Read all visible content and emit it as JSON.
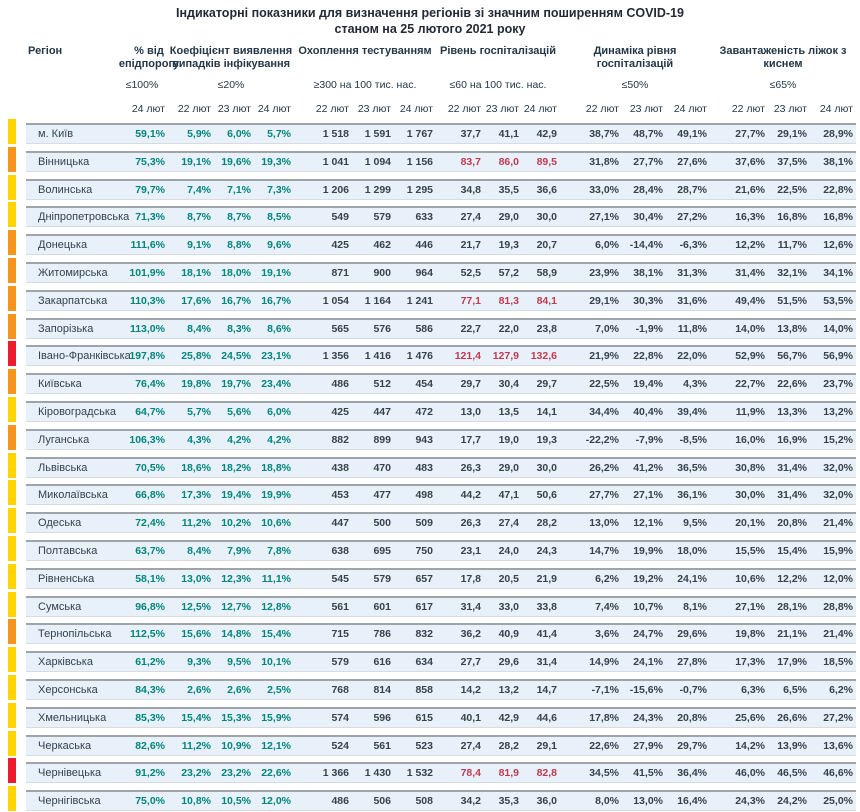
{
  "title": {
    "line1": "Індикаторні показники для визначення регіонів зі значним поширенням COVID-19",
    "line2": "станом на 25 лютого 2021 року"
  },
  "columns": {
    "region_label": "Регіон",
    "groups": [
      {
        "id": "epid",
        "title": "% від епідпорогу",
        "threshold": "≤100%",
        "dates": [
          "24 лют"
        ]
      },
      {
        "id": "coef",
        "title": "Коефіцієнт виявлення випадків інфікування",
        "threshold": "≤20%",
        "dates": [
          "22 лют",
          "23 лют",
          "24 лют"
        ]
      },
      {
        "id": "test",
        "title": "Охоплення тестуванням",
        "threshold": "≥300 на 100 тис. нас.",
        "dates": [
          "22 лют",
          "23 лют",
          "24 лют"
        ]
      },
      {
        "id": "hosp",
        "title": "Рівень госпіталізацій",
        "threshold": "≤60 на 100 тис. нас.",
        "dates": [
          "22 лют",
          "23 лют",
          "24 лют"
        ]
      },
      {
        "id": "dyn",
        "title": "Динаміка рівня госпіталізацій",
        "threshold": "≤50%",
        "dates": [
          "22 лют",
          "23 лют",
          "24 лют"
        ]
      },
      {
        "id": "oxy",
        "title": "Завантаженість ліжок з киснем",
        "threshold": "≤65%",
        "dates": [
          "22 лют",
          "23 лют",
          "24 лют"
        ]
      }
    ]
  },
  "colors": {
    "teal_value": "#00857C",
    "alert_red_value": "#C23A50",
    "dark_value": "#37424D",
    "header_text": "#243746",
    "row_background": "#E8F1FA",
    "marker_yellow": "#FFD400",
    "marker_orange": "#F7941E",
    "marker_red": "#EC1C2E"
  },
  "rows": [
    {
      "region": "м. Київ",
      "marker": "yellow",
      "epid": "59,1%",
      "coef": [
        "5,9%",
        "6,0%",
        "5,7%"
      ],
      "test": [
        "1 518",
        "1 591",
        "1 767"
      ],
      "hosp": [
        "37,7",
        "41,1",
        "42,9"
      ],
      "hosp_alert": false,
      "dyn": [
        "38,7%",
        "48,7%",
        "49,1%"
      ],
      "oxy": [
        "27,7%",
        "29,1%",
        "28,9%"
      ]
    },
    {
      "region": "Вінницька",
      "marker": "orange",
      "epid": "75,3%",
      "coef": [
        "19,1%",
        "19,6%",
        "19,3%"
      ],
      "test": [
        "1 041",
        "1 094",
        "1 156"
      ],
      "hosp": [
        "83,7",
        "86,0",
        "89,5"
      ],
      "hosp_alert": true,
      "dyn": [
        "31,8%",
        "27,7%",
        "27,6%"
      ],
      "oxy": [
        "37,6%",
        "37,5%",
        "38,1%"
      ]
    },
    {
      "region": "Волинська",
      "marker": "yellow",
      "epid": "79,7%",
      "coef": [
        "7,4%",
        "7,1%",
        "7,3%"
      ],
      "test": [
        "1 206",
        "1 299",
        "1 295"
      ],
      "hosp": [
        "34,8",
        "35,5",
        "36,6"
      ],
      "hosp_alert": false,
      "dyn": [
        "33,0%",
        "28,4%",
        "28,7%"
      ],
      "oxy": [
        "21,6%",
        "22,5%",
        "22,8%"
      ]
    },
    {
      "region": "Дніпропетровська",
      "marker": "yellow",
      "epid": "71,3%",
      "coef": [
        "8,7%",
        "8,7%",
        "8,5%"
      ],
      "test": [
        "549",
        "579",
        "633"
      ],
      "hosp": [
        "27,4",
        "29,0",
        "30,0"
      ],
      "hosp_alert": false,
      "dyn": [
        "27,1%",
        "30,4%",
        "27,2%"
      ],
      "oxy": [
        "16,3%",
        "16,8%",
        "16,8%"
      ]
    },
    {
      "region": "Донецька",
      "marker": "orange",
      "epid": "111,6%",
      "coef": [
        "9,1%",
        "8,8%",
        "9,6%"
      ],
      "test": [
        "425",
        "462",
        "446"
      ],
      "hosp": [
        "21,7",
        "19,3",
        "20,7"
      ],
      "hosp_alert": false,
      "dyn": [
        "6,0%",
        "-14,4%",
        "-6,3%"
      ],
      "oxy": [
        "12,2%",
        "11,7%",
        "12,6%"
      ]
    },
    {
      "region": "Житомирська",
      "marker": "orange",
      "epid": "101,9%",
      "coef": [
        "18,1%",
        "18,0%",
        "19,1%"
      ],
      "test": [
        "871",
        "900",
        "964"
      ],
      "hosp": [
        "52,5",
        "57,2",
        "58,9"
      ],
      "hosp_alert": false,
      "dyn": [
        "23,9%",
        "38,1%",
        "31,3%"
      ],
      "oxy": [
        "31,4%",
        "32,1%",
        "34,1%"
      ]
    },
    {
      "region": "Закарпатська",
      "marker": "orange",
      "epid": "110,3%",
      "coef": [
        "17,6%",
        "16,7%",
        "16,7%"
      ],
      "test": [
        "1 054",
        "1 164",
        "1 241"
      ],
      "hosp": [
        "77,1",
        "81,3",
        "84,1"
      ],
      "hosp_alert": true,
      "dyn": [
        "29,1%",
        "30,3%",
        "31,6%"
      ],
      "oxy": [
        "49,4%",
        "51,5%",
        "53,5%"
      ]
    },
    {
      "region": "Запорізька",
      "marker": "orange",
      "epid": "113,0%",
      "coef": [
        "8,4%",
        "8,3%",
        "8,6%"
      ],
      "test": [
        "565",
        "576",
        "586"
      ],
      "hosp": [
        "22,7",
        "22,0",
        "23,8"
      ],
      "hosp_alert": false,
      "dyn": [
        "7,0%",
        "-1,9%",
        "11,8%"
      ],
      "oxy": [
        "14,0%",
        "13,8%",
        "14,0%"
      ]
    },
    {
      "region": "Івано-Франківська",
      "marker": "red",
      "epid": "197,8%",
      "coef": [
        "25,8%",
        "24,5%",
        "23,1%"
      ],
      "test": [
        "1 356",
        "1 416",
        "1 476"
      ],
      "hosp": [
        "121,4",
        "127,9",
        "132,6"
      ],
      "hosp_alert": true,
      "dyn": [
        "21,9%",
        "22,8%",
        "22,0%"
      ],
      "oxy": [
        "52,9%",
        "56,7%",
        "56,9%"
      ]
    },
    {
      "region": "Київська",
      "marker": "orange",
      "epid": "76,4%",
      "coef": [
        "19,8%",
        "19,7%",
        "23,4%"
      ],
      "test": [
        "486",
        "512",
        "454"
      ],
      "hosp": [
        "29,7",
        "30,4",
        "29,7"
      ],
      "hosp_alert": false,
      "dyn": [
        "22,5%",
        "19,4%",
        "4,3%"
      ],
      "oxy": [
        "22,7%",
        "22,6%",
        "23,7%"
      ]
    },
    {
      "region": "Кіровоградська",
      "marker": "yellow",
      "epid": "64,7%",
      "coef": [
        "5,7%",
        "5,6%",
        "6,0%"
      ],
      "test": [
        "425",
        "447",
        "472"
      ],
      "hosp": [
        "13,0",
        "13,5",
        "14,1"
      ],
      "hosp_alert": false,
      "dyn": [
        "34,4%",
        "40,4%",
        "39,4%"
      ],
      "oxy": [
        "11,9%",
        "13,3%",
        "13,2%"
      ]
    },
    {
      "region": "Луганська",
      "marker": "orange",
      "epid": "106,3%",
      "coef": [
        "4,3%",
        "4,2%",
        "4,2%"
      ],
      "test": [
        "882",
        "899",
        "943"
      ],
      "hosp": [
        "17,7",
        "19,0",
        "19,3"
      ],
      "hosp_alert": false,
      "dyn": [
        "-22,2%",
        "-7,9%",
        "-8,5%"
      ],
      "oxy": [
        "16,0%",
        "16,9%",
        "15,2%"
      ]
    },
    {
      "region": "Львівська",
      "marker": "yellow",
      "epid": "70,5%",
      "coef": [
        "18,6%",
        "18,2%",
        "18,8%"
      ],
      "test": [
        "438",
        "470",
        "483"
      ],
      "hosp": [
        "26,3",
        "29,0",
        "30,0"
      ],
      "hosp_alert": false,
      "dyn": [
        "26,2%",
        "41,2%",
        "36,5%"
      ],
      "oxy": [
        "30,8%",
        "31,4%",
        "32,0%"
      ]
    },
    {
      "region": "Миколаївська",
      "marker": "yellow",
      "epid": "66,8%",
      "coef": [
        "17,3%",
        "19,4%",
        "19,9%"
      ],
      "test": [
        "453",
        "477",
        "498"
      ],
      "hosp": [
        "44,2",
        "47,1",
        "50,6"
      ],
      "hosp_alert": false,
      "dyn": [
        "27,7%",
        "27,1%",
        "36,1%"
      ],
      "oxy": [
        "30,0%",
        "31,4%",
        "32,0%"
      ]
    },
    {
      "region": "Одеська",
      "marker": "yellow",
      "epid": "72,4%",
      "coef": [
        "11,2%",
        "10,2%",
        "10,6%"
      ],
      "test": [
        "447",
        "500",
        "509"
      ],
      "hosp": [
        "26,3",
        "27,4",
        "28,2"
      ],
      "hosp_alert": false,
      "dyn": [
        "13,0%",
        "12,1%",
        "9,5%"
      ],
      "oxy": [
        "20,1%",
        "20,8%",
        "21,4%"
      ]
    },
    {
      "region": "Полтавська",
      "marker": "yellow",
      "epid": "63,7%",
      "coef": [
        "8,4%",
        "7,9%",
        "7,8%"
      ],
      "test": [
        "638",
        "695",
        "750"
      ],
      "hosp": [
        "23,1",
        "24,0",
        "24,3"
      ],
      "hosp_alert": false,
      "dyn": [
        "14,7%",
        "19,9%",
        "18,0%"
      ],
      "oxy": [
        "15,5%",
        "15,4%",
        "15,9%"
      ]
    },
    {
      "region": "Рівненська",
      "marker": "yellow",
      "epid": "58,1%",
      "coef": [
        "13,0%",
        "12,3%",
        "11,1%"
      ],
      "test": [
        "545",
        "579",
        "657"
      ],
      "hosp": [
        "17,8",
        "20,5",
        "21,9"
      ],
      "hosp_alert": false,
      "dyn": [
        "6,2%",
        "19,2%",
        "24,1%"
      ],
      "oxy": [
        "10,6%",
        "12,2%",
        "12,0%"
      ]
    },
    {
      "region": "Сумська",
      "marker": "yellow",
      "epid": "96,8%",
      "coef": [
        "12,5%",
        "12,7%",
        "12,8%"
      ],
      "test": [
        "561",
        "601",
        "617"
      ],
      "hosp": [
        "31,4",
        "33,0",
        "33,8"
      ],
      "hosp_alert": false,
      "dyn": [
        "7,4%",
        "10,7%",
        "8,1%"
      ],
      "oxy": [
        "27,1%",
        "28,1%",
        "28,8%"
      ]
    },
    {
      "region": "Тернопільська",
      "marker": "orange",
      "epid": "112,5%",
      "coef": [
        "15,6%",
        "14,8%",
        "15,4%"
      ],
      "test": [
        "715",
        "786",
        "832"
      ],
      "hosp": [
        "36,2",
        "40,9",
        "41,4"
      ],
      "hosp_alert": false,
      "dyn": [
        "3,6%",
        "24,7%",
        "29,6%"
      ],
      "oxy": [
        "19,8%",
        "21,1%",
        "21,4%"
      ]
    },
    {
      "region": "Харківська",
      "marker": "yellow",
      "epid": "61,2%",
      "coef": [
        "9,3%",
        "9,5%",
        "10,1%"
      ],
      "test": [
        "579",
        "616",
        "634"
      ],
      "hosp": [
        "27,7",
        "29,6",
        "31,4"
      ],
      "hosp_alert": false,
      "dyn": [
        "14,9%",
        "24,1%",
        "27,8%"
      ],
      "oxy": [
        "17,3%",
        "17,9%",
        "18,5%"
      ]
    },
    {
      "region": "Херсонська",
      "marker": "yellow",
      "epid": "84,3%",
      "coef": [
        "2,6%",
        "2,6%",
        "2,5%"
      ],
      "test": [
        "768",
        "814",
        "858"
      ],
      "hosp": [
        "14,2",
        "13,2",
        "14,7"
      ],
      "hosp_alert": false,
      "dyn": [
        "-7,1%",
        "-15,6%",
        "-0,7%"
      ],
      "oxy": [
        "6,3%",
        "6,5%",
        "6,2%"
      ]
    },
    {
      "region": "Хмельницька",
      "marker": "yellow",
      "epid": "85,3%",
      "coef": [
        "15,4%",
        "15,3%",
        "15,9%"
      ],
      "test": [
        "574",
        "596",
        "615"
      ],
      "hosp": [
        "40,1",
        "42,9",
        "44,6"
      ],
      "hosp_alert": false,
      "dyn": [
        "17,8%",
        "24,3%",
        "20,8%"
      ],
      "oxy": [
        "25,6%",
        "26,6%",
        "27,2%"
      ]
    },
    {
      "region": "Черкаська",
      "marker": "yellow",
      "epid": "82,6%",
      "coef": [
        "11,2%",
        "10,9%",
        "12,1%"
      ],
      "test": [
        "524",
        "561",
        "523"
      ],
      "hosp": [
        "27,4",
        "28,2",
        "29,1"
      ],
      "hosp_alert": false,
      "dyn": [
        "22,6%",
        "27,9%",
        "29,7%"
      ],
      "oxy": [
        "14,2%",
        "13,9%",
        "13,6%"
      ]
    },
    {
      "region": "Чернівецька",
      "marker": "red",
      "epid": "91,2%",
      "coef": [
        "23,2%",
        "23,2%",
        "22,6%"
      ],
      "test": [
        "1 366",
        "1 430",
        "1 532"
      ],
      "hosp": [
        "78,4",
        "81,9",
        "82,8"
      ],
      "hosp_alert": true,
      "dyn": [
        "34,5%",
        "41,5%",
        "36,4%"
      ],
      "oxy": [
        "46,0%",
        "46,5%",
        "46,6%"
      ]
    },
    {
      "region": "Чернігівська",
      "marker": "yellow",
      "epid": "75,0%",
      "coef": [
        "10,8%",
        "10,5%",
        "12,0%"
      ],
      "test": [
        "486",
        "506",
        "508"
      ],
      "hosp": [
        "34,2",
        "35,3",
        "36,0"
      ],
      "hosp_alert": false,
      "dyn": [
        "8,0%",
        "13,0%",
        "16,4%"
      ],
      "oxy": [
        "24,3%",
        "24,2%",
        "25,0%"
      ]
    }
  ]
}
